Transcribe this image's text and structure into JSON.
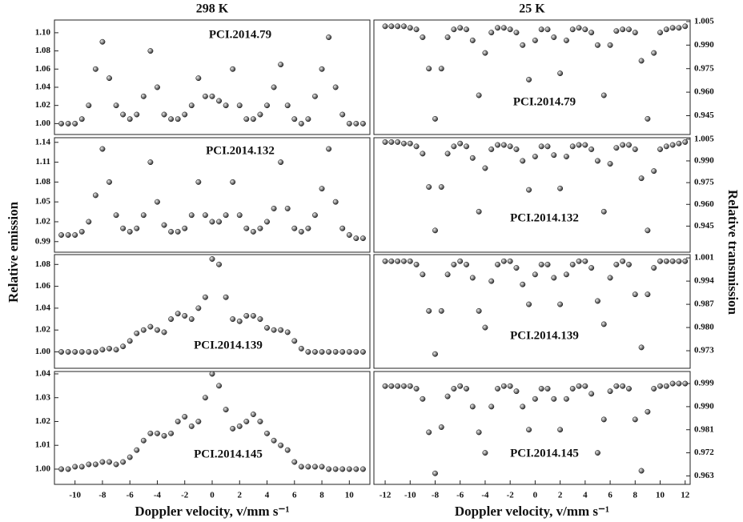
{
  "ylabel_left": "Relative emission",
  "ylabel_right": "Relative transmission",
  "chart_data": [
    {
      "type": "scatter",
      "header": "298 K",
      "title": "PCI.2014.79",
      "xlim": [
        -11.5,
        11.5
      ],
      "ylim": [
        0.988,
        1.114
      ],
      "yticks": [
        {
          "value": 1.0,
          "label": "1.00"
        },
        1.02,
        1.04,
        1.06,
        1.08,
        {
          "value": 1.1,
          "label": "1.10"
        }
      ],
      "x": [
        -11,
        -10.5,
        -10,
        -9.5,
        -9,
        -8.5,
        -8,
        -7.5,
        -7,
        -6.5,
        -6,
        -5.5,
        -5,
        -4.5,
        -4,
        -3.5,
        -3,
        -2.5,
        -2,
        -1.5,
        -1,
        -0.5,
        0,
        0.5,
        1,
        1.5,
        2,
        2.5,
        3,
        3.5,
        4,
        4.5,
        5,
        5.5,
        6,
        6.5,
        7,
        7.5,
        8,
        8.5,
        9,
        9.5,
        10,
        10.5,
        11
      ],
      "values": [
        1.0,
        1.0,
        1.0,
        1.005,
        1.02,
        1.06,
        1.09,
        1.05,
        1.02,
        1.01,
        1.005,
        1.01,
        1.03,
        1.08,
        1.04,
        1.01,
        1.005,
        1.005,
        1.01,
        1.02,
        1.05,
        1.03,
        1.03,
        1.025,
        1.02,
        1.06,
        1.02,
        1.005,
        1.005,
        1.01,
        1.02,
        1.04,
        1.065,
        1.02,
        1.005,
        1.0,
        1.005,
        1.03,
        1.06,
        1.095,
        1.04,
        1.01,
        1.0,
        1.0,
        1.0
      ]
    },
    {
      "type": "scatter",
      "title": "PCI.2014.132",
      "xlim": [
        -11.5,
        11.5
      ],
      "ylim": [
        0.974,
        1.147
      ],
      "yticks": [
        0.99,
        1.02,
        1.05,
        1.08,
        1.11,
        1.14
      ],
      "x": [
        -11,
        -10.5,
        -10,
        -9.5,
        -9,
        -8.5,
        -8,
        -7.5,
        -7,
        -6.5,
        -6,
        -5.5,
        -5,
        -4.5,
        -4,
        -3.5,
        -3,
        -2.5,
        -2,
        -1.5,
        -1,
        -0.5,
        0,
        0.5,
        1,
        1.5,
        2,
        2.5,
        3,
        3.5,
        4,
        4.5,
        5,
        5.5,
        6,
        6.5,
        7,
        7.5,
        8,
        8.5,
        9,
        9.5,
        10,
        10.5,
        11
      ],
      "values": [
        1.0,
        1.0,
        1.0,
        1.005,
        1.02,
        1.06,
        1.13,
        1.08,
        1.03,
        1.01,
        1.005,
        1.01,
        1.03,
        1.11,
        1.05,
        1.015,
        1.005,
        1.005,
        1.01,
        1.03,
        1.08,
        1.03,
        1.02,
        1.02,
        1.03,
        1.08,
        1.03,
        1.01,
        1.005,
        1.01,
        1.02,
        1.04,
        1.11,
        1.04,
        1.01,
        1.005,
        1.01,
        1.03,
        1.07,
        1.13,
        1.05,
        1.01,
        1.0,
        0.995,
        0.995
      ]
    },
    {
      "type": "scatter",
      "title": "PCI.2014.139",
      "xlim": [
        -11.5,
        11.5
      ],
      "ylim": [
        0.985,
        1.089
      ],
      "yticks": [
        {
          "value": 1.0,
          "label": "1.00"
        },
        1.02,
        1.04,
        1.06,
        1.08
      ],
      "x": [
        -11,
        -10.5,
        -10,
        -9.5,
        -9,
        -8.5,
        -8,
        -7.5,
        -7,
        -6.5,
        -6,
        -5.5,
        -5,
        -4.5,
        -4,
        -3.5,
        -3,
        -2.5,
        -2,
        -1.5,
        -1,
        -0.5,
        0,
        0.5,
        1,
        1.5,
        2,
        2.5,
        3,
        3.5,
        4,
        4.5,
        5,
        5.5,
        6,
        6.5,
        7,
        7.5,
        8,
        8.5,
        9,
        9.5,
        10,
        10.5,
        11
      ],
      "values": [
        1.0,
        1.0,
        1.0,
        1.0,
        1.0,
        1.0,
        1.002,
        1.003,
        1.002,
        1.005,
        1.01,
        1.017,
        1.02,
        1.023,
        1.02,
        1.018,
        1.03,
        1.035,
        1.033,
        1.03,
        1.04,
        1.05,
        1.085,
        1.08,
        1.05,
        1.03,
        1.028,
        1.033,
        1.033,
        1.03,
        1.022,
        1.02,
        1.02,
        1.018,
        1.01,
        1.003,
        1.0,
        1.0,
        1.0,
        1.0,
        1.0,
        1.0,
        1.0,
        1.0,
        1.0
      ]
    },
    {
      "type": "scatter",
      "title": "PCI.2014.145",
      "xlabel": "Doppler velocity, v/mm s⁻¹",
      "xlim": [
        -11.5,
        11.5
      ],
      "ylim": [
        0.9936,
        1.041
      ],
      "yticks": [
        {
          "value": 1.0,
          "label": "1.00"
        },
        1.01,
        1.02,
        1.03,
        1.04
      ],
      "xticks": [
        -10,
        -8,
        -6,
        -4,
        -2,
        0,
        2,
        4,
        6,
        8,
        10
      ],
      "x": [
        -11,
        -10.5,
        -10,
        -9.5,
        -9,
        -8.5,
        -8,
        -7.5,
        -7,
        -6.5,
        -6,
        -5.5,
        -5,
        -4.5,
        -4,
        -3.5,
        -3,
        -2.5,
        -2,
        -1.5,
        -1,
        -0.5,
        0,
        0.5,
        1,
        1.5,
        2,
        2.5,
        3,
        3.5,
        4,
        4.5,
        5,
        5.5,
        6,
        6.5,
        7,
        7.5,
        8,
        8.5,
        9,
        9.5,
        10,
        10.5,
        11
      ],
      "values": [
        1.0,
        1.0,
        1.001,
        1.001,
        1.002,
        1.002,
        1.003,
        1.003,
        1.002,
        1.003,
        1.005,
        1.008,
        1.012,
        1.015,
        1.015,
        1.014,
        1.015,
        1.02,
        1.022,
        1.018,
        1.02,
        1.03,
        1.04,
        1.035,
        1.025,
        1.017,
        1.018,
        1.02,
        1.023,
        1.02,
        1.015,
        1.012,
        1.01,
        1.008,
        1.003,
        1.001,
        1.001,
        1.001,
        1.001,
        1.0,
        1.0,
        1.0,
        1.0,
        1.0,
        1.0
      ]
    },
    {
      "type": "scatter",
      "header": "25 K",
      "title": "PCI.2014.79",
      "xlim": [
        -12.9,
        12.4
      ],
      "ylim": [
        0.933,
        1.006
      ],
      "yticks": [
        1.005,
        {
          "value": 0.99,
          "label": "0.990"
        },
        0.975,
        {
          "value": 0.96,
          "label": "0.960"
        },
        0.945
      ],
      "x": [
        -12,
        -11.5,
        -11,
        -10.5,
        -10,
        -9.5,
        -9,
        -8.5,
        -8,
        -7.5,
        -7,
        -6.5,
        -6,
        -5.5,
        -5,
        -4.5,
        -4,
        -3.5,
        -3,
        -2.5,
        -2,
        -1.5,
        -1,
        -0.5,
        0,
        0.5,
        1,
        1.5,
        2,
        2.5,
        3,
        3.5,
        4,
        4.5,
        5,
        5.5,
        6,
        6.5,
        7,
        7.5,
        8,
        8.5,
        9,
        9.5,
        10,
        10.5,
        11,
        11.5,
        12
      ],
      "values": [
        1.002,
        1.002,
        1.002,
        1.002,
        1.001,
        1.0,
        0.995,
        0.975,
        0.943,
        0.975,
        0.995,
        1.0,
        1.001,
        1.0,
        0.993,
        0.958,
        0.985,
        0.998,
        1.001,
        1.001,
        1.0,
        0.998,
        0.99,
        0.968,
        0.993,
        1.0,
        1.0,
        0.995,
        0.972,
        0.993,
        1.0,
        1.001,
        1.0,
        0.998,
        0.99,
        0.958,
        0.99,
        0.999,
        1.0,
        1.0,
        0.998,
        0.98,
        0.943,
        0.985,
        0.998,
        1.0,
        1.001,
        1.001,
        1.002
      ]
    },
    {
      "type": "scatter",
      "title": "PCI.2014.132",
      "xlim": [
        -12.9,
        12.4
      ],
      "ylim": [
        0.927,
        1.006
      ],
      "yticks": [
        1.005,
        {
          "value": 0.99,
          "label": "0.990"
        },
        0.975,
        {
          "value": 0.96,
          "label": "0.960"
        },
        0.945
      ],
      "x": [
        -12,
        -11.5,
        -11,
        -10.5,
        -10,
        -9.5,
        -9,
        -8.5,
        -8,
        -7.5,
        -7,
        -6.5,
        -6,
        -5.5,
        -5,
        -4.5,
        -4,
        -3.5,
        -3,
        -2.5,
        -2,
        -1.5,
        -1,
        -0.5,
        0,
        0.5,
        1,
        1.5,
        2,
        2.5,
        3,
        3.5,
        4,
        4.5,
        5,
        5.5,
        6,
        6.5,
        7,
        7.5,
        8,
        8.5,
        9,
        9.5,
        10,
        10.5,
        11,
        11.5,
        12
      ],
      "values": [
        1.003,
        1.003,
        1.003,
        1.002,
        1.002,
        1.0,
        0.995,
        0.972,
        0.942,
        0.972,
        0.995,
        1.0,
        1.002,
        1.0,
        0.992,
        0.955,
        0.985,
        0.998,
        1.001,
        1.001,
        1.0,
        0.998,
        0.99,
        0.97,
        0.993,
        1.0,
        1.0,
        0.994,
        0.971,
        0.993,
        1.0,
        1.001,
        1.001,
        0.998,
        0.99,
        0.955,
        0.988,
        0.999,
        1.001,
        1.001,
        0.998,
        0.978,
        0.942,
        0.983,
        0.998,
        1.0,
        1.001,
        1.002,
        1.003
      ]
    },
    {
      "type": "scatter",
      "title": "PCI.2014.139",
      "xlim": [
        -12.9,
        12.4
      ],
      "ylim": [
        0.9677,
        1.002
      ],
      "yticks": [
        1.001,
        0.994,
        0.987,
        {
          "value": 0.98,
          "label": "0.980"
        },
        0.973
      ],
      "x": [
        -12,
        -11.5,
        -11,
        -10.5,
        -10,
        -9.5,
        -9,
        -8.5,
        -8,
        -7.5,
        -7,
        -6.5,
        -6,
        -5.5,
        -5,
        -4.5,
        -4,
        -3.5,
        -3,
        -2.5,
        -2,
        -1.5,
        -1,
        -0.5,
        0,
        0.5,
        1,
        1.5,
        2,
        2.5,
        3,
        3.5,
        4,
        4.5,
        5,
        5.5,
        6,
        6.5,
        7,
        7.5,
        8,
        8.5,
        9,
        9.5,
        10,
        10.5,
        11,
        11.5,
        12
      ],
      "values": [
        1.0,
        1.0,
        1.0,
        1.0,
        1.0,
        0.999,
        0.996,
        0.985,
        0.972,
        0.985,
        0.996,
        0.999,
        1.0,
        0.999,
        0.995,
        0.985,
        0.98,
        0.994,
        0.999,
        1.0,
        1.0,
        0.998,
        0.993,
        0.987,
        0.996,
        0.999,
        0.999,
        0.995,
        0.987,
        0.996,
        0.999,
        1.0,
        1.0,
        0.998,
        0.988,
        0.981,
        0.995,
        0.999,
        1.0,
        0.999,
        0.99,
        0.974,
        0.99,
        0.998,
        1.0,
        1.0,
        1.0,
        1.0,
        1.0
      ]
    },
    {
      "type": "scatter",
      "title": "PCI.2014.145",
      "xlabel": "Doppler velocity, v/mm s⁻¹",
      "xlim": [
        -12.9,
        12.4
      ],
      "ylim": [
        0.9597,
        1.0037
      ],
      "yticks": [
        0.999,
        {
          "value": 0.99,
          "label": "0.990"
        },
        0.981,
        0.972,
        0.963
      ],
      "xticks": [
        -12,
        -10,
        -8,
        -6,
        -4,
        -2,
        0,
        2,
        4,
        6,
        8,
        10,
        12
      ],
      "x": [
        -12,
        -11.5,
        -11,
        -10.5,
        -10,
        -9.5,
        -9,
        -8.5,
        -8,
        -7.5,
        -7,
        -6.5,
        -6,
        -5.5,
        -5,
        -4.5,
        -4,
        -3.5,
        -3,
        -2.5,
        -2,
        -1.5,
        -1,
        -0.5,
        0,
        0.5,
        1,
        1.5,
        2,
        2.5,
        3,
        3.5,
        4,
        4.5,
        5,
        5.5,
        6,
        6.5,
        7,
        7.5,
        8,
        8.5,
        9,
        9.5,
        10,
        10.5,
        11,
        11.5,
        12
      ],
      "values": [
        0.998,
        0.998,
        0.998,
        0.998,
        0.998,
        0.997,
        0.993,
        0.98,
        0.964,
        0.982,
        0.994,
        0.997,
        0.998,
        0.997,
        0.99,
        0.98,
        0.972,
        0.99,
        0.997,
        0.998,
        0.998,
        0.996,
        0.99,
        0.981,
        0.993,
        0.997,
        0.997,
        0.993,
        0.981,
        0.993,
        0.997,
        0.998,
        0.998,
        0.995,
        0.972,
        0.985,
        0.996,
        0.998,
        0.998,
        0.997,
        0.985,
        0.965,
        0.988,
        0.997,
        0.998,
        0.998,
        0.999,
        0.999,
        0.999
      ]
    }
  ]
}
